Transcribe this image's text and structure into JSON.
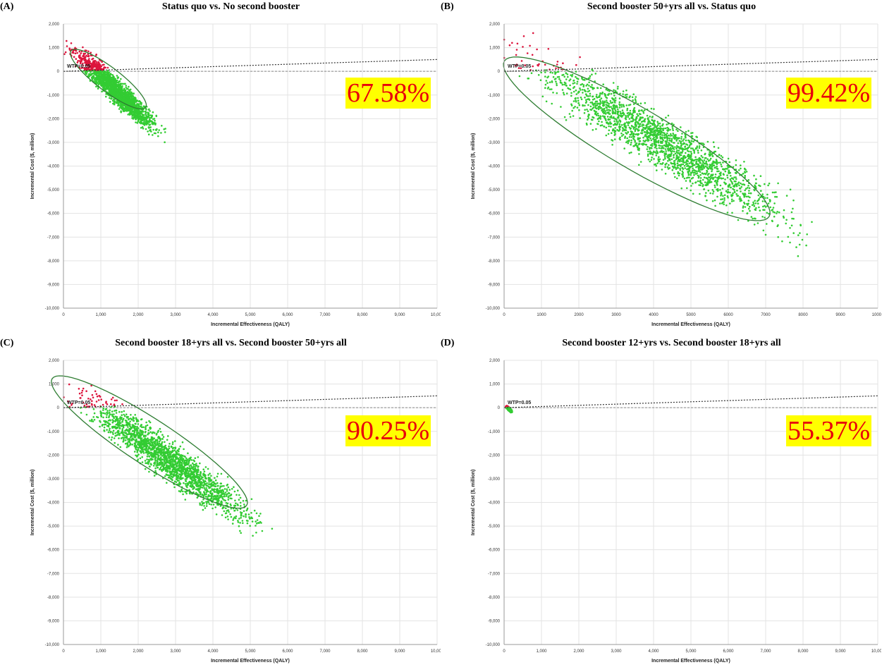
{
  "colors": {
    "red_cloud": "#dc143c",
    "green_cloud": "#33cc33",
    "ellipse": "#2e7d32",
    "badge_bg": "#ffff00",
    "badge_text": "#e8000b"
  },
  "chart_data": [
    {
      "type": "scatter",
      "letter": "(A)",
      "title": "Status quo vs. No second booster",
      "xlabel": "Incremental Effectiveness (QALY)",
      "ylabel": "Incremental Cost ($, million)",
      "xlim": [
        0,
        10000
      ],
      "ylim": [
        -10000,
        2000
      ],
      "xticks": [
        "0",
        "1,000",
        "2,000",
        "3,000",
        "4,000",
        "5,000",
        "6,000",
        "7,000",
        "8,000",
        "9,000",
        "10,000"
      ],
      "yticks": [
        "2,000",
        "1,000",
        "0",
        "-1,000",
        "-2,000",
        "-3,000",
        "-4,000",
        "-5,000",
        "-6,000",
        "-7,000",
        "-8,000",
        "-9,000",
        "-10,000"
      ],
      "wtp_label": "WTP=0.05",
      "wtp_slope": 0.05,
      "percent_cost_effective": "67.58%",
      "cloud": {
        "center": [
          1400,
          -800
        ],
        "spread_along": 1100,
        "spread_across": 180,
        "angle_deg": -58
      },
      "confidence_ellipse": {
        "center": [
          1200,
          -330
        ],
        "semi_major": 1570,
        "semi_minor": 400,
        "angle_deg": -52
      },
      "grid": true
    },
    {
      "type": "scatter",
      "letter": "(B)",
      "title": "Second booster 50+yrs all vs. Status quo",
      "xlabel": "Incremental Effectiveness (QALY)",
      "ylabel": "Incremental Cost ($, million)",
      "xlim": [
        0,
        10000
      ],
      "ylim": [
        -10000,
        2000
      ],
      "xticks": [
        "0",
        "1000",
        "2000",
        "3000",
        "4000",
        "5000",
        "6000",
        "7000",
        "8000",
        "9000",
        "10000"
      ],
      "yticks": [
        "2,000",
        "1,000",
        "0",
        "-1,000",
        "-2,000",
        "-3,000",
        "-4,000",
        "-5,000",
        "-6,000",
        "-7,000",
        "-8,000",
        "-9,000",
        "-10,000"
      ],
      "wtp_label": "WTP=0.05",
      "wtp_slope": 0.05,
      "percent_cost_effective": "99.42%",
      "cloud": {
        "center": [
          4200,
          -3000
        ],
        "spread_along": 2700,
        "spread_across": 480,
        "angle_deg": -45
      },
      "confidence_ellipse": {
        "center": [
          3550,
          -2850
        ],
        "semi_major": 4850,
        "semi_minor": 1080,
        "angle_deg": -44
      },
      "grid": true
    },
    {
      "type": "scatter",
      "letter": "(C)",
      "title": "Second booster 18+yrs all vs. Second booster 50+yrs all",
      "xlabel": "Incremental Effectiveness (QALY)",
      "ylabel": "Incremental Cost ($, million)",
      "xlim": [
        0,
        10000
      ],
      "ylim": [
        -10000,
        2000
      ],
      "xticks": [
        "0",
        "1,000",
        "2,000",
        "3,000",
        "4,000",
        "5,000",
        "6,000",
        "7,000",
        "8,000",
        "9,000",
        "10,000"
      ],
      "yticks": [
        "2,000",
        "1,000",
        "0",
        "-1,000",
        "-2,000",
        "-3,000",
        "-4,000",
        "-5,000",
        "-6,000",
        "-7,000",
        "-8,000",
        "-9,000",
        "-10,000"
      ],
      "wtp_label": "WTP=0.05",
      "wtp_slope": 0.05,
      "percent_cost_effective": "90.25%",
      "cloud": {
        "center": [
          2800,
          -2200
        ],
        "spread_along": 1900,
        "spread_across": 330,
        "angle_deg": -50
      },
      "confidence_ellipse": {
        "center": [
          2300,
          -1450
        ],
        "semi_major": 3750,
        "semi_minor": 800,
        "angle_deg": -47
      },
      "grid": true
    },
    {
      "type": "scatter",
      "letter": "(D)",
      "title": "Second booster 12+yrs vs. Second booster 18+yrs all",
      "xlabel": "Incremental Effectiveness (QALY)",
      "ylabel": "Incremental Cost ($, million)",
      "xlim": [
        0,
        10000
      ],
      "ylim": [
        -10000,
        2000
      ],
      "xticks": [
        "0",
        "1,000",
        "2,000",
        "3,000",
        "4,000",
        "5,000",
        "6,000",
        "7,000",
        "8,000",
        "9,000",
        "10,000"
      ],
      "yticks": [
        "2,000",
        "1,000",
        "0",
        "-1,000",
        "-2,000",
        "-3,000",
        "-4,000",
        "-5,000",
        "-6,000",
        "-7,000",
        "-8,000",
        "-9,000",
        "-10,000"
      ],
      "wtp_label": "WTP=0.05",
      "wtp_slope": 0.05,
      "percent_cost_effective": "55.37%",
      "cloud": {
        "center": [
          130,
          -60
        ],
        "spread_along": 70,
        "spread_across": 20,
        "angle_deg": -60
      },
      "confidence_ellipse": null,
      "grid": true
    }
  ]
}
